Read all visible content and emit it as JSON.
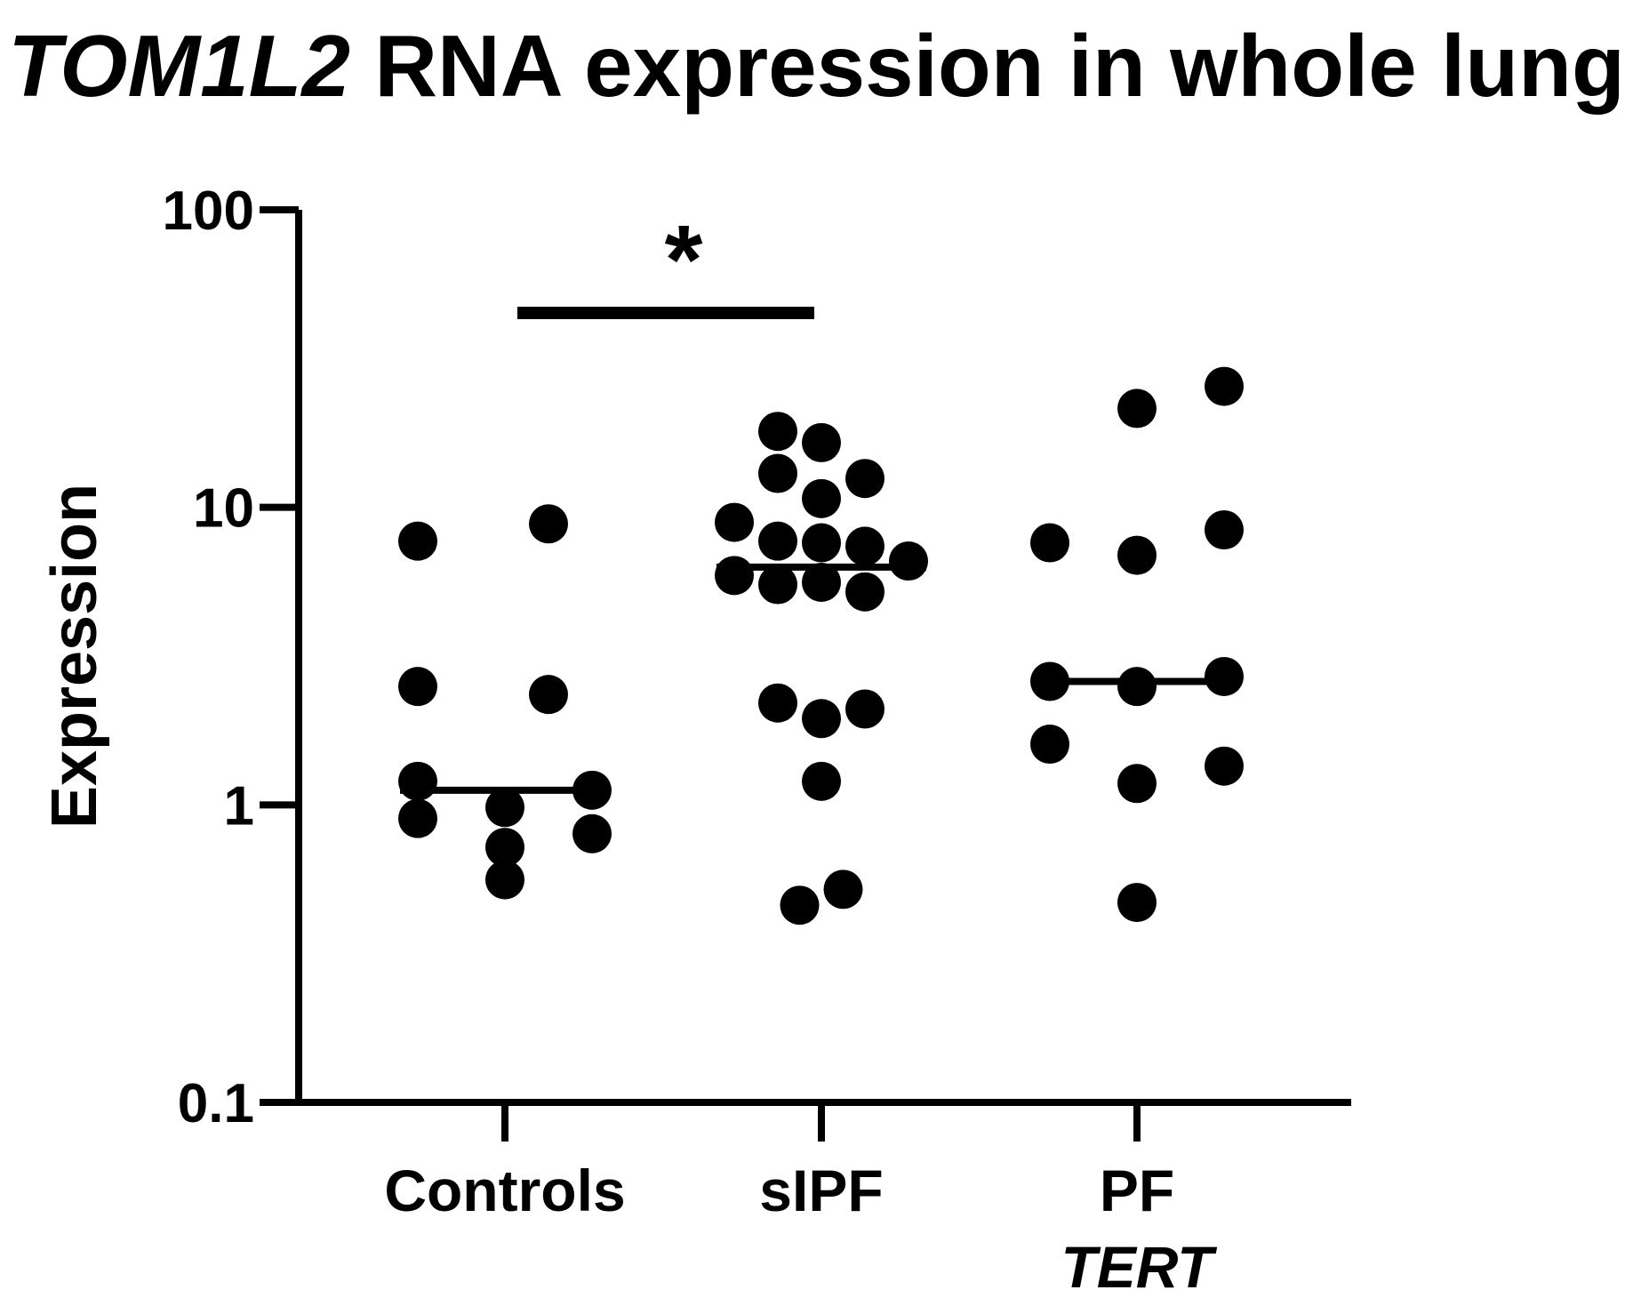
{
  "chart_data": {
    "type": "scatter",
    "title": {
      "gene": "TOM1L2",
      "rest": " RNA expression in whole lung"
    },
    "xlabel": "",
    "ylabel": "Expression",
    "yscale": "log",
    "ylim": [
      0.1,
      100
    ],
    "yticks": [
      {
        "value": 0.1,
        "label": "0.1"
      },
      {
        "value": 1,
        "label": "1"
      },
      {
        "value": 10,
        "label": "10"
      },
      {
        "value": 100,
        "label": "100"
      }
    ],
    "categories": [
      {
        "label": "Controls",
        "sublabel": ""
      },
      {
        "label": "sIPF",
        "sublabel": ""
      },
      {
        "label": "PF",
        "sublabel": "TERT"
      }
    ],
    "grid": false,
    "legend": "none",
    "marker_color": "#000000",
    "groups": [
      {
        "category": "Controls",
        "median": 1.12,
        "points": [
          {
            "offset": -0.28,
            "y": 7.7
          },
          {
            "offset": 0.14,
            "y": 8.8
          },
          {
            "offset": -0.28,
            "y": 2.5
          },
          {
            "offset": 0.14,
            "y": 2.35
          },
          {
            "offset": -0.28,
            "y": 1.2
          },
          {
            "offset": 0.28,
            "y": 1.12
          },
          {
            "offset": -0.28,
            "y": 0.9
          },
          {
            "offset": 0.0,
            "y": 0.98
          },
          {
            "offset": 0.28,
            "y": 0.8
          },
          {
            "offset": 0.0,
            "y": 0.72
          },
          {
            "offset": 0.0,
            "y": 0.56
          }
        ]
      },
      {
        "category": "sIPF",
        "median": 6.3,
        "points": [
          {
            "offset": -0.14,
            "y": 18.0
          },
          {
            "offset": 0.0,
            "y": 16.5
          },
          {
            "offset": -0.14,
            "y": 13.0
          },
          {
            "offset": 0.14,
            "y": 12.5
          },
          {
            "offset": 0.0,
            "y": 10.7
          },
          {
            "offset": -0.28,
            "y": 8.9
          },
          {
            "offset": -0.14,
            "y": 7.7
          },
          {
            "offset": 0.0,
            "y": 7.6
          },
          {
            "offset": 0.14,
            "y": 7.4
          },
          {
            "offset": 0.28,
            "y": 6.6
          },
          {
            "offset": -0.28,
            "y": 5.9
          },
          {
            "offset": -0.14,
            "y": 5.5
          },
          {
            "offset": 0.0,
            "y": 5.6
          },
          {
            "offset": 0.14,
            "y": 5.2
          },
          {
            "offset": -0.14,
            "y": 2.2
          },
          {
            "offset": 0.0,
            "y": 1.95
          },
          {
            "offset": 0.14,
            "y": 2.1
          },
          {
            "offset": 0.0,
            "y": 1.2
          },
          {
            "offset": -0.07,
            "y": 0.46
          },
          {
            "offset": 0.07,
            "y": 0.52
          }
        ]
      },
      {
        "category": "PF TERT",
        "median": 2.6,
        "points": [
          {
            "offset": 0.0,
            "y": 21.5
          },
          {
            "offset": 0.28,
            "y": 25.5
          },
          {
            "offset": -0.28,
            "y": 7.6
          },
          {
            "offset": 0.0,
            "y": 6.9
          },
          {
            "offset": 0.28,
            "y": 8.4
          },
          {
            "offset": -0.28,
            "y": 2.6
          },
          {
            "offset": 0.0,
            "y": 2.5
          },
          {
            "offset": 0.28,
            "y": 2.7
          },
          {
            "offset": -0.28,
            "y": 1.6
          },
          {
            "offset": 0.0,
            "y": 1.18
          },
          {
            "offset": 0.28,
            "y": 1.35
          },
          {
            "offset": 0.0,
            "y": 0.47
          }
        ]
      }
    ],
    "significance": [
      {
        "from": "Controls",
        "to": "sIPF",
        "label": "*",
        "y": 45
      }
    ]
  }
}
